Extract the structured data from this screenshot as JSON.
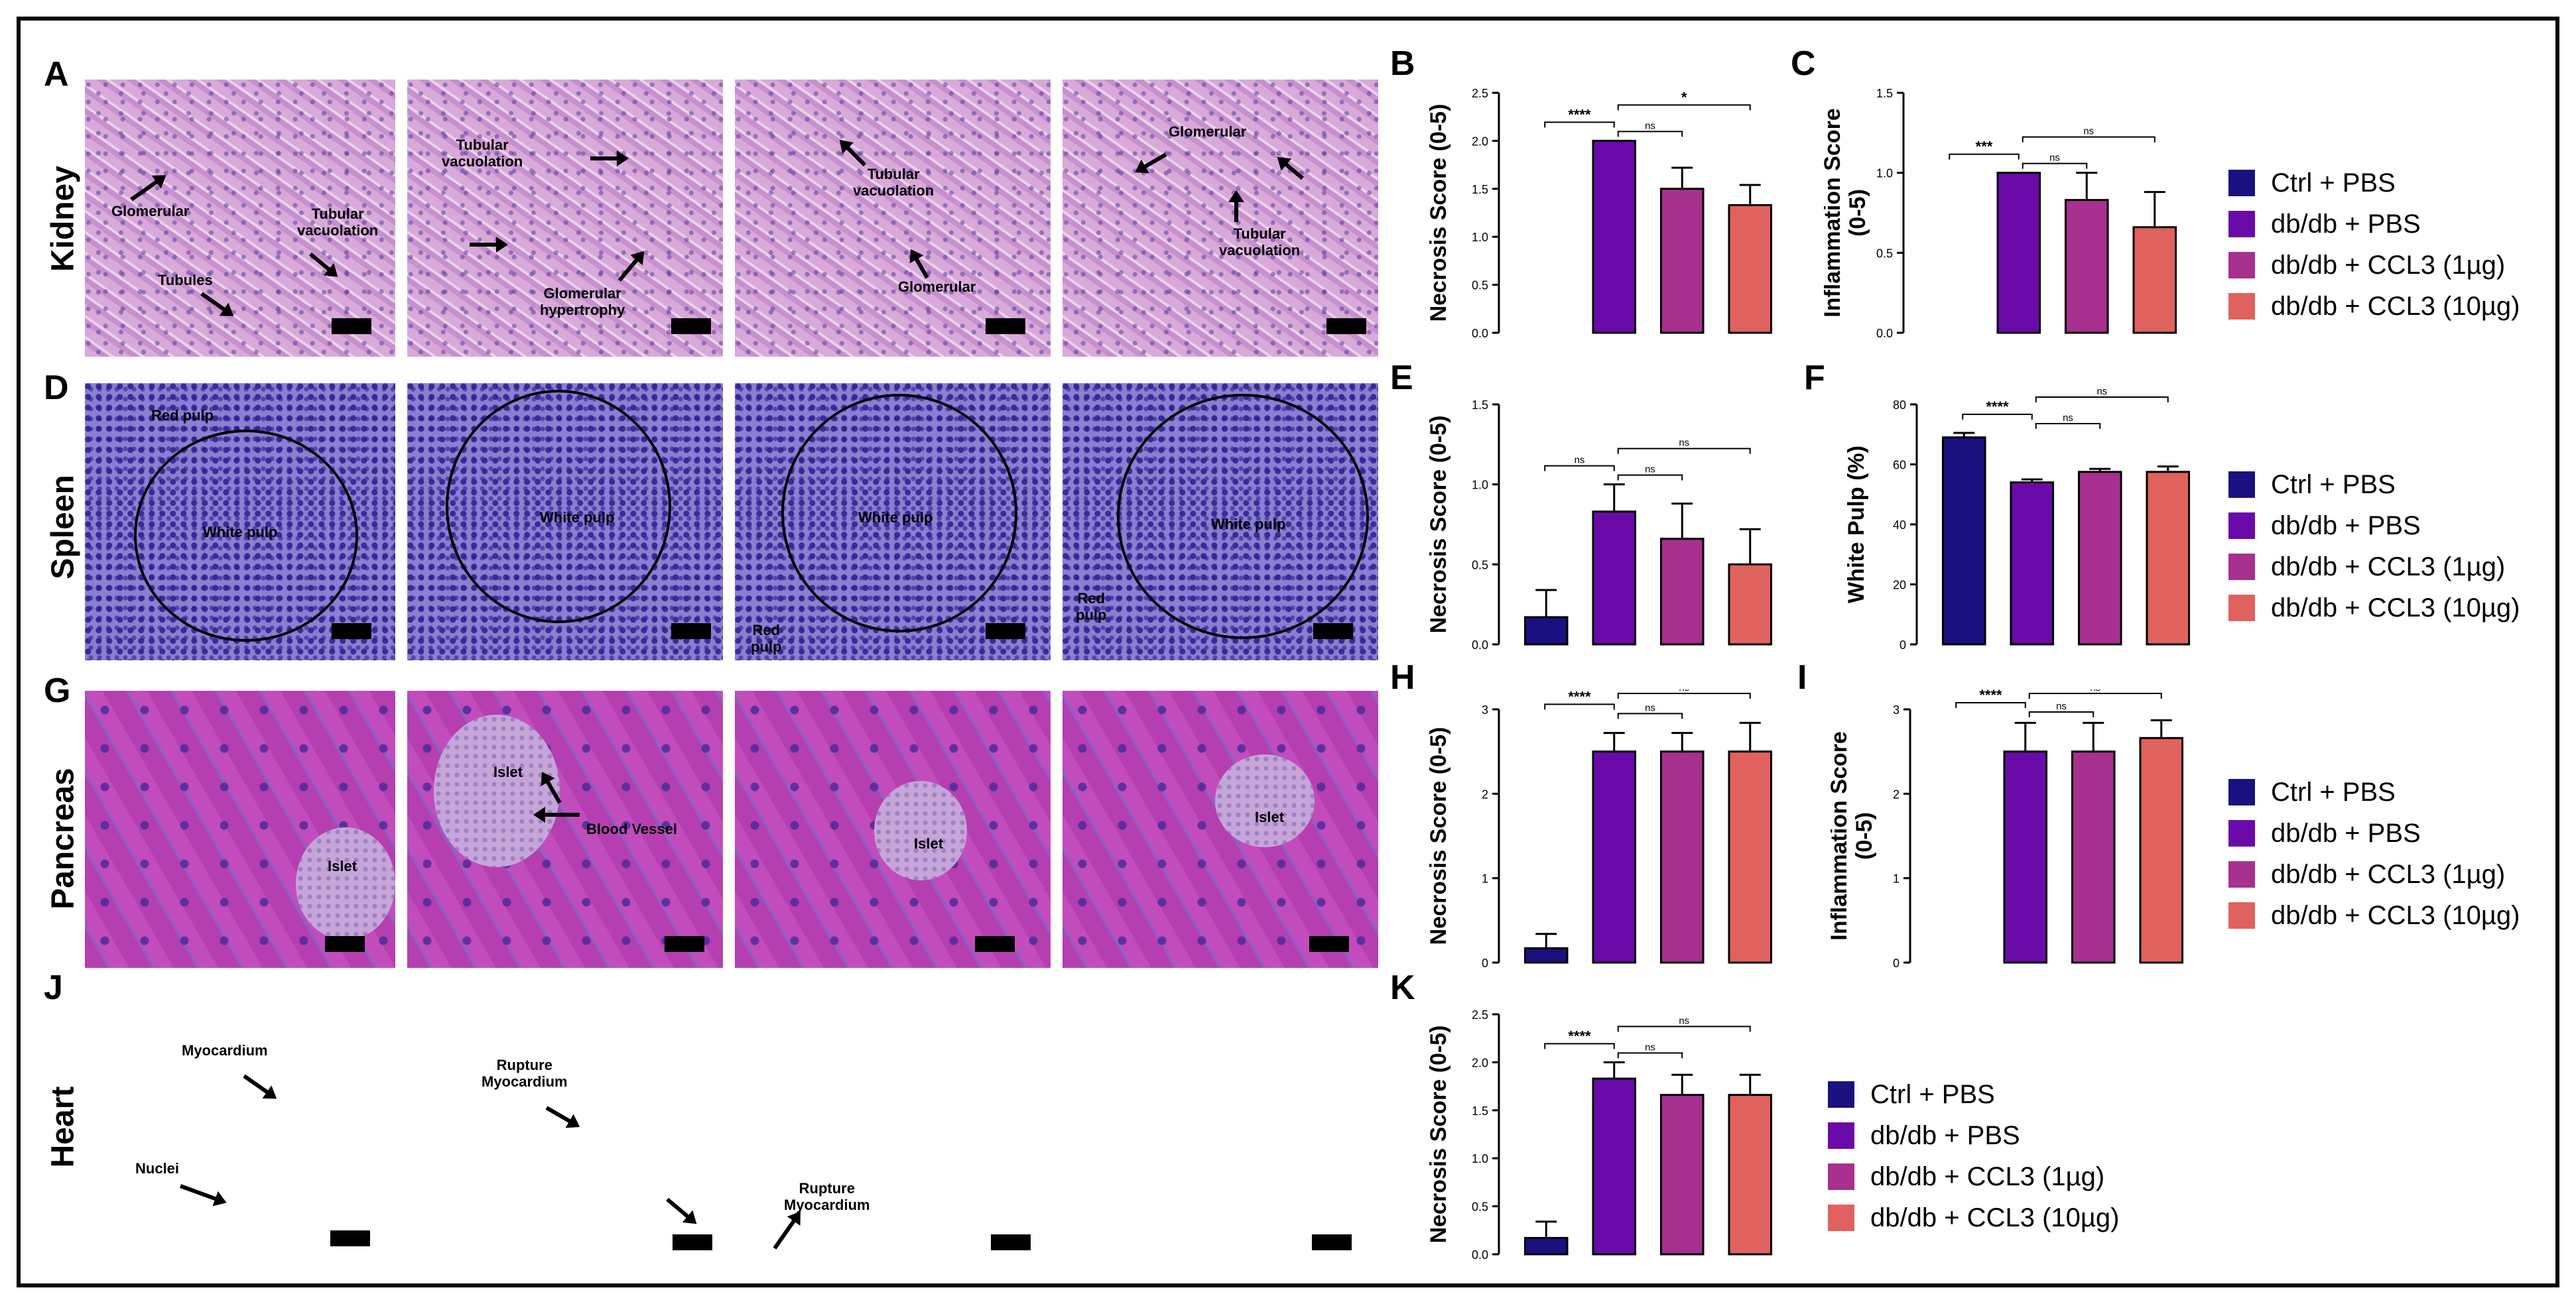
{
  "panel_letters": [
    "A",
    "B",
    "C",
    "D",
    "E",
    "F",
    "G",
    "H",
    "I",
    "J",
    "K"
  ],
  "organ_labels": [
    "Kidney",
    "Spleen",
    "Pancreas",
    "Heart"
  ],
  "micrograph_annotations": {
    "kidney_1": [
      "Glomerular",
      "Tubular\nvacuolation",
      "Tubules"
    ],
    "kidney_2": [
      "Tubular\nvacuolation",
      "Glomerular\nhypertrophy"
    ],
    "kidney_3": [
      "Tubular\nvacuolation",
      "Glomerular"
    ],
    "kidney_4": [
      "Glomerular",
      "Tubular\nvacuolation"
    ],
    "spleen_1": [
      "Red pulp",
      "White pulp"
    ],
    "spleen_2": [
      "White pulp"
    ],
    "spleen_3": [
      "White pulp",
      "Red\npulp"
    ],
    "spleen_4": [
      "White pulp",
      "Red\npulp"
    ],
    "pancreas_1": [
      "Islet"
    ],
    "pancreas_2": [
      "Islet",
      "Blood Vessel"
    ],
    "pancreas_3": [
      "Islet"
    ],
    "pancreas_4": [
      "Islet"
    ],
    "heart_1": [
      "Myocardium",
      "Nuclei"
    ],
    "heart_2": [
      "Rupture\nMyocardium"
    ],
    "heart_3": [
      "Rupture\nMyocardium"
    ],
    "heart_4": []
  },
  "legend": {
    "items": [
      "Ctrl + PBS",
      "db/db + PBS",
      "db/db + CCL3 (1µg)",
      "db/db + CCL3 (10µg)"
    ],
    "colors": [
      "#1a1080",
      "#6a0aa8",
      "#a8308e",
      "#e0625e"
    ]
  },
  "chart_data": [
    {
      "panel": "B",
      "type": "bar",
      "ylabel": "Necrosis Score (0-5)",
      "categories": [
        "Ctrl + PBS",
        "db/db + PBS",
        "db/db + CCL3 (1µg)",
        "db/db + CCL3 (10µg)"
      ],
      "values": [
        0,
        2.0,
        1.5,
        1.33
      ],
      "errors": [
        0,
        0,
        0.22,
        0.21
      ],
      "ylim": [
        0,
        2.5
      ],
      "ticks": [
        "0.0",
        "0.5",
        "1.0",
        "1.5",
        "2.0",
        "2.5"
      ],
      "significance": [
        {
          "from": 0,
          "to": 1,
          "label": "****"
        },
        {
          "from": 1,
          "to": 2,
          "label": "ns"
        },
        {
          "from": 1,
          "to": 3,
          "label": "*"
        }
      ]
    },
    {
      "panel": "C",
      "type": "bar",
      "ylabel": "Inflammation Score\n(0-5)",
      "categories": [
        "Ctrl + PBS",
        "db/db + PBS",
        "db/db + CCL3 (1µg)",
        "db/db + CCL3 (10µg)"
      ],
      "values": [
        0,
        1.0,
        0.83,
        0.66
      ],
      "errors": [
        0,
        0,
        0.17,
        0.22
      ],
      "ylim": [
        0,
        1.5
      ],
      "ticks": [
        "0.0",
        "0.5",
        "1.0",
        "1.5"
      ],
      "significance": [
        {
          "from": 0,
          "to": 1,
          "label": "***"
        },
        {
          "from": 1,
          "to": 2,
          "label": "ns"
        },
        {
          "from": 1,
          "to": 3,
          "label": "ns"
        }
      ]
    },
    {
      "panel": "E",
      "type": "bar",
      "ylabel": "Necrosis Score (0-5)",
      "categories": [
        "Ctrl + PBS",
        "db/db + PBS",
        "db/db + CCL3 (1µg)",
        "db/db + CCL3 (10µg)"
      ],
      "values": [
        0.17,
        0.83,
        0.66,
        0.5
      ],
      "errors": [
        0.17,
        0.17,
        0.22,
        0.22
      ],
      "ylim": [
        0,
        1.5
      ],
      "ticks": [
        "0.0",
        "0.5",
        "1.0",
        "1.5"
      ],
      "significance": [
        {
          "from": 0,
          "to": 1,
          "label": "ns"
        },
        {
          "from": 1,
          "to": 2,
          "label": "ns"
        },
        {
          "from": 1,
          "to": 3,
          "label": "ns"
        }
      ]
    },
    {
      "panel": "F",
      "type": "bar",
      "ylabel": "White Pulp (%)",
      "categories": [
        "Ctrl + PBS",
        "db/db + PBS",
        "db/db + CCL3 (1µg)",
        "db/db + CCL3 (10µg)"
      ],
      "values": [
        69,
        54,
        57.5,
        57.5
      ],
      "errors": [
        1.5,
        1,
        1,
        1.8
      ],
      "ylim": [
        0,
        80
      ],
      "ticks": [
        "0",
        "20",
        "40",
        "60",
        "80"
      ],
      "significance": [
        {
          "from": 0,
          "to": 1,
          "label": "****"
        },
        {
          "from": 1,
          "to": 2,
          "label": "ns"
        },
        {
          "from": 1,
          "to": 3,
          "label": "ns"
        }
      ]
    },
    {
      "panel": "H",
      "type": "bar",
      "ylabel": "Necrosis Score (0-5)",
      "categories": [
        "Ctrl + PBS",
        "db/db + PBS",
        "db/db + CCL3 (1µg)",
        "db/db + CCL3 (10µg)"
      ],
      "values": [
        0.17,
        2.5,
        2.5,
        2.5
      ],
      "errors": [
        0.17,
        0.22,
        0.22,
        0.34
      ],
      "ylim": [
        0,
        3
      ],
      "ticks": [
        "0",
        "1",
        "2",
        "3"
      ],
      "significance": [
        {
          "from": 0,
          "to": 1,
          "label": "****"
        },
        {
          "from": 1,
          "to": 2,
          "label": "ns"
        },
        {
          "from": 1,
          "to": 3,
          "label": "ns"
        }
      ]
    },
    {
      "panel": "I",
      "type": "bar",
      "ylabel": "Inflammation Score\n(0-5)",
      "categories": [
        "Ctrl + PBS",
        "db/db + PBS",
        "db/db + CCL3 (1µg)",
        "db/db + CCL3 (10µg)"
      ],
      "values": [
        0,
        2.5,
        2.5,
        2.66
      ],
      "errors": [
        0,
        0.34,
        0.34,
        0.21
      ],
      "ylim": [
        0,
        3
      ],
      "ticks": [
        "0",
        "1",
        "2",
        "3"
      ],
      "significance": [
        {
          "from": 0,
          "to": 1,
          "label": "****"
        },
        {
          "from": 1,
          "to": 2,
          "label": "ns"
        },
        {
          "from": 1,
          "to": 3,
          "label": "ns"
        }
      ]
    },
    {
      "panel": "K",
      "type": "bar",
      "ylabel": "Necrosis Score (0-5)",
      "categories": [
        "Ctrl + PBS",
        "db/db + PBS",
        "db/db + CCL3 (1µg)",
        "db/db + CCL3 (10µg)"
      ],
      "values": [
        0.17,
        1.83,
        1.66,
        1.66
      ],
      "errors": [
        0.17,
        0.17,
        0.21,
        0.21
      ],
      "ylim": [
        0,
        2.5
      ],
      "ticks": [
        "0.0",
        "0.5",
        "1.0",
        "1.5",
        "2.0",
        "2.5"
      ],
      "significance": [
        {
          "from": 0,
          "to": 1,
          "label": "****"
        },
        {
          "from": 1,
          "to": 2,
          "label": "ns"
        },
        {
          "from": 1,
          "to": 3,
          "label": "ns"
        }
      ]
    }
  ]
}
